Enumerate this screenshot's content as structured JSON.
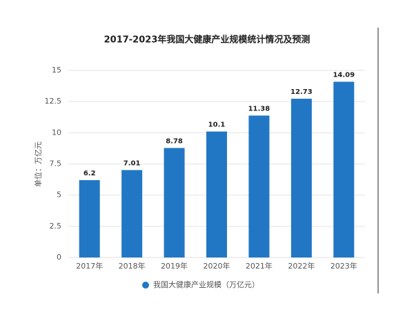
{
  "chart_data": {
    "type": "bar",
    "title": "2017-2023年我国大健康产业规模统计情况及预测",
    "y_label": "单位：万亿元",
    "categories": [
      "2017年",
      "2018年",
      "2019年",
      "2020年",
      "2021年",
      "2022年",
      "2023年"
    ],
    "series": [
      {
        "name": "我国大健康产业规模（万亿元）",
        "color": "#2277c5",
        "values": [
          6.2,
          7.01,
          8.78,
          10.1,
          11.38,
          12.73,
          14.09
        ]
      }
    ],
    "ylim": [
      0,
      15
    ],
    "yticks": [
      0,
      2.5,
      5,
      7.5,
      10,
      12.5,
      15
    ],
    "grid": true,
    "legend": "bottom"
  }
}
